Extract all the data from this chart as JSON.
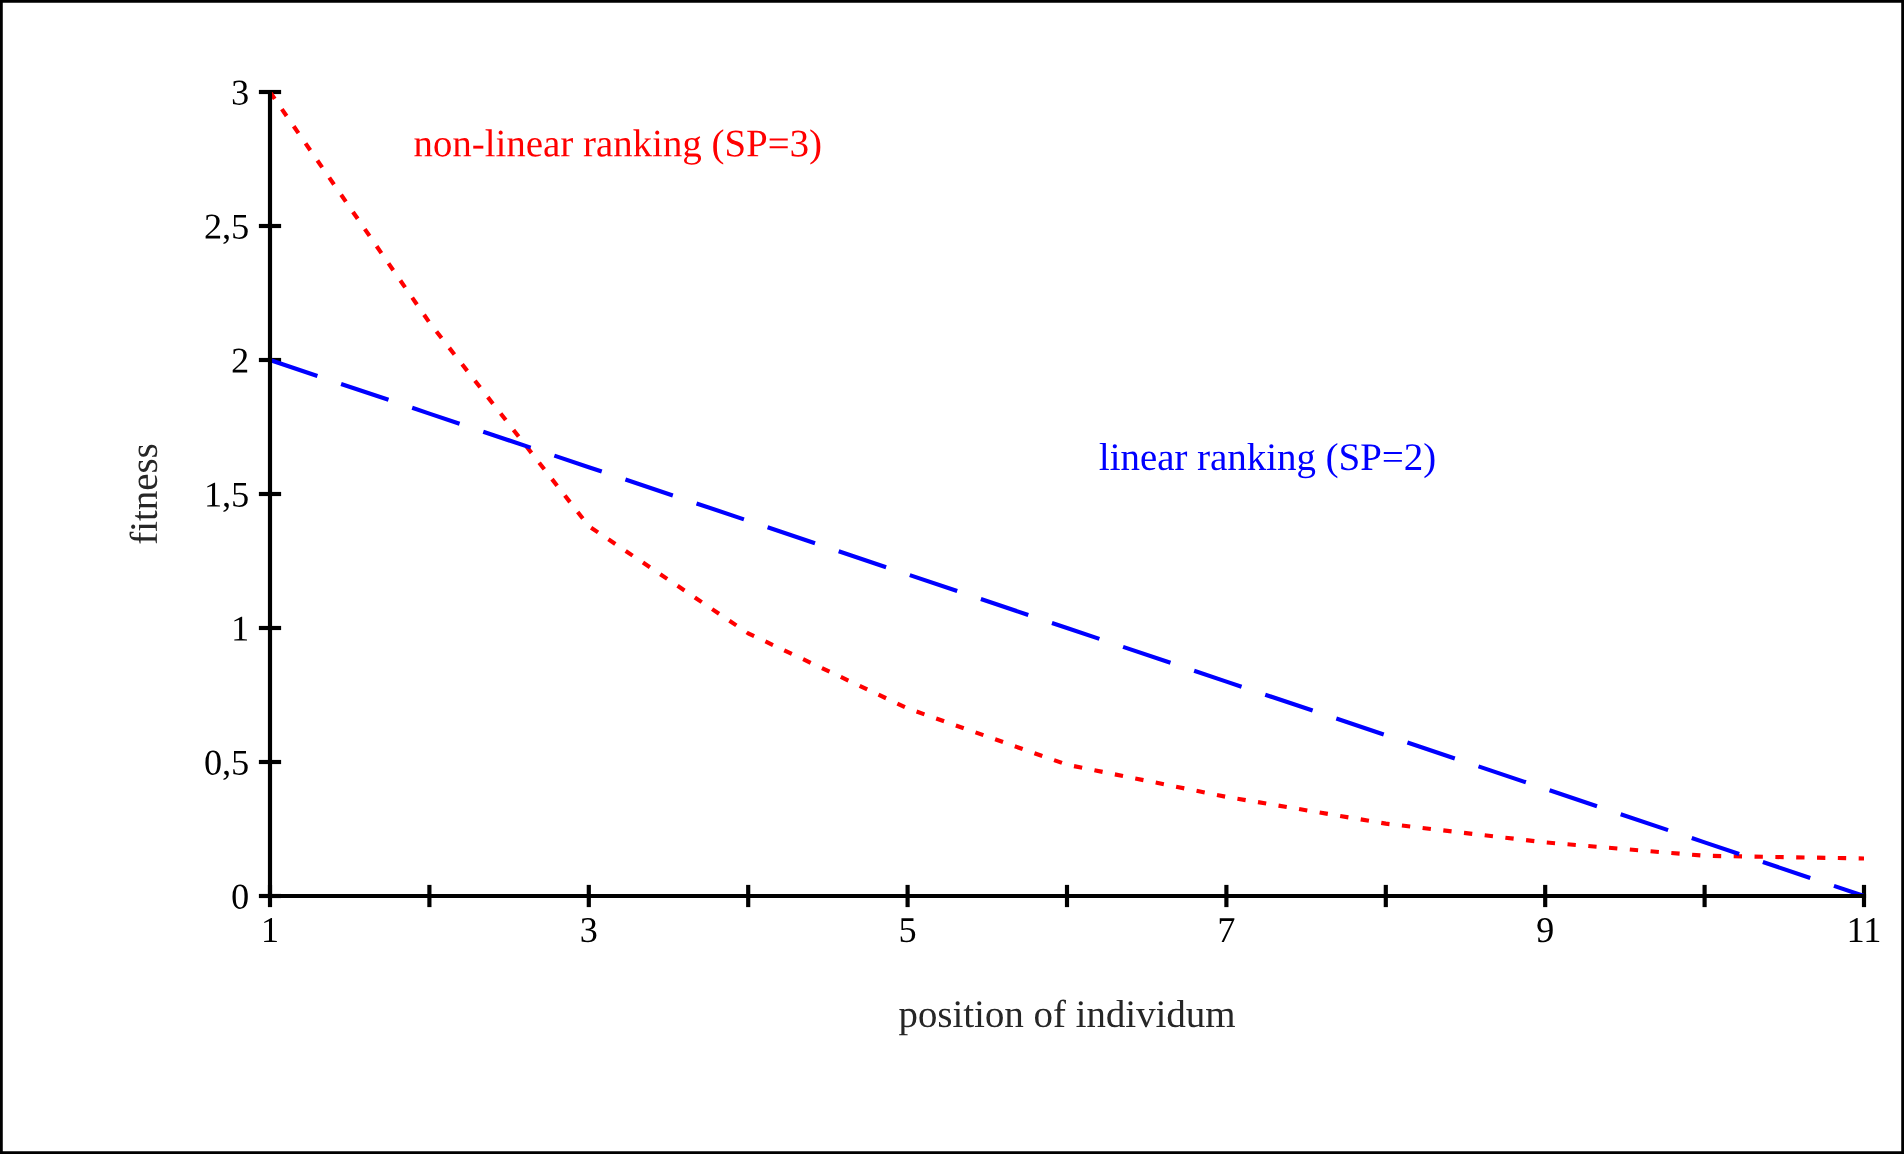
{
  "chart_data": {
    "type": "line",
    "xlabel": "position of individum",
    "ylabel": "fitness",
    "x": [
      1,
      2,
      3,
      4,
      5,
      6,
      7,
      8,
      9,
      10,
      11
    ],
    "series": [
      {
        "name": "non-linear ranking (SP=3)",
        "color": "#ff0000",
        "line_style": "dotted",
        "values": [
          3.0,
          2.14,
          1.38,
          0.98,
          0.7,
          0.49,
          0.37,
          0.27,
          0.2,
          0.15,
          0.14
        ]
      },
      {
        "name": "linear ranking (SP=2)",
        "color": "#0000ff",
        "line_style": "dashed",
        "values": [
          2.0,
          1.8,
          1.6,
          1.4,
          1.2,
          1.0,
          0.8,
          0.6,
          0.4,
          0.2,
          0.0
        ]
      }
    ],
    "xlim": [
      1,
      11
    ],
    "xticks": [
      1,
      {
        "value": 2,
        "label": null
      },
      3,
      {
        "value": 4,
        "label": null
      },
      5,
      {
        "value": 6,
        "label": null
      },
      7,
      {
        "value": 8,
        "label": null
      },
      9,
      {
        "value": 10,
        "label": null
      },
      11
    ],
    "ylim": [
      0,
      3
    ],
    "yticks": [
      0,
      {
        "value": 0.5,
        "label": "0,5"
      },
      1,
      {
        "value": 1.5,
        "label": "1,5"
      },
      2,
      {
        "value": 2.5,
        "label": "2,5"
      },
      3
    ],
    "grid": false,
    "legend": false,
    "marker": "none"
  }
}
